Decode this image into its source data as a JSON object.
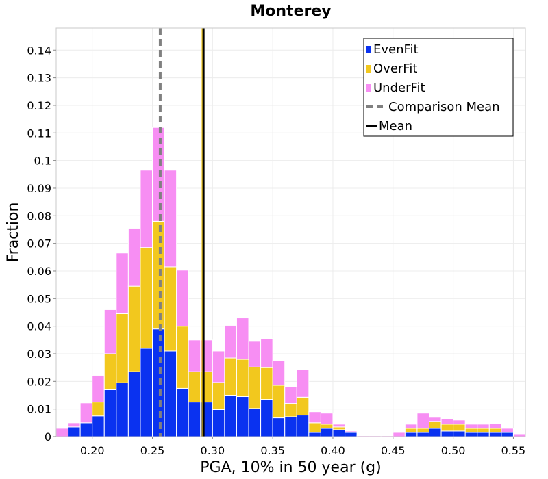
{
  "chart_data": {
    "type": "bar",
    "stacked": true,
    "title": "Monterey",
    "xlabel": "PGA, 10% in 50 year (g)",
    "ylabel": "Fraction",
    "xlim": [
      0.17,
      0.56
    ],
    "ylim": [
      0,
      0.148
    ],
    "bin_width": 0.01,
    "grid": true,
    "legend_position": "top-right",
    "x_ticks": [
      "0.20",
      "0.25",
      "0.30",
      "0.35",
      "0.40",
      "0.45",
      "0.50",
      "0.55"
    ],
    "y_ticks": [
      "0",
      "0.01",
      "0.02",
      "0.03",
      "0.04",
      "0.05",
      "0.06",
      "0.07",
      "0.08",
      "0.09",
      "0.1",
      "0.11",
      "0.12",
      "0.13",
      "0.14"
    ],
    "x": [
      0.175,
      0.185,
      0.195,
      0.205,
      0.215,
      0.225,
      0.235,
      0.245,
      0.255,
      0.265,
      0.275,
      0.285,
      0.295,
      0.305,
      0.315,
      0.325,
      0.335,
      0.345,
      0.355,
      0.365,
      0.375,
      0.385,
      0.395,
      0.405,
      0.415,
      0.425,
      0.435,
      0.445,
      0.455,
      0.465,
      0.475,
      0.485,
      0.495,
      0.505,
      0.515,
      0.525,
      0.535,
      0.545,
      0.555
    ],
    "series": [
      {
        "name": "EvenFit",
        "color": "#0a32f0",
        "values": [
          0,
          0.0035,
          0.005,
          0.0075,
          0.017,
          0.0195,
          0.0235,
          0.032,
          0.039,
          0.031,
          0.0175,
          0.0125,
          0.0125,
          0.0098,
          0.015,
          0.0145,
          0.0102,
          0.0135,
          0.0068,
          0.0072,
          0.0078,
          0.0015,
          0.003,
          0.0025,
          0.0015,
          0,
          0,
          0,
          0,
          0.0015,
          0.0015,
          0.003,
          0.002,
          0.002,
          0.0015,
          0.0015,
          0.0015,
          0.0015,
          0
        ]
      },
      {
        "name": "OverFit",
        "color": "#f2c81e",
        "values": [
          0,
          0,
          0,
          0.005,
          0.013,
          0.025,
          0.031,
          0.0365,
          0.039,
          0.0305,
          0.0225,
          0.011,
          0.011,
          0.0098,
          0.0135,
          0.0135,
          0.015,
          0.0115,
          0.0118,
          0.0048,
          0.0065,
          0.0035,
          0.0015,
          0.001,
          0,
          0,
          0,
          0,
          0,
          0.0015,
          0.0015,
          0.0025,
          0.0025,
          0.0025,
          0.0015,
          0.0015,
          0.0015,
          0,
          0
        ]
      },
      {
        "name": "UnderFit",
        "color": "#f78ef3",
        "values": [
          0.003,
          0.0015,
          0.0072,
          0.0097,
          0.016,
          0.022,
          0.021,
          0.028,
          0.034,
          0.035,
          0.0203,
          0.0115,
          0.0115,
          0.0114,
          0.0118,
          0.015,
          0.0093,
          0.0105,
          0.0089,
          0.006,
          0.0099,
          0.004,
          0.004,
          0.001,
          0.0005,
          0.0003,
          0.0003,
          0.0003,
          0.0015,
          0.0015,
          0.0055,
          0.0015,
          0.002,
          0.0015,
          0.0015,
          0.0015,
          0.0018,
          0.0015,
          0.001
        ]
      }
    ],
    "lines": [
      {
        "name": "Comparison Mean",
        "x": 0.2565,
        "color": "#808080",
        "style": "dashed"
      },
      {
        "name": "Mean",
        "x": 0.2925,
        "color": "#000000",
        "style": "solid"
      }
    ]
  }
}
